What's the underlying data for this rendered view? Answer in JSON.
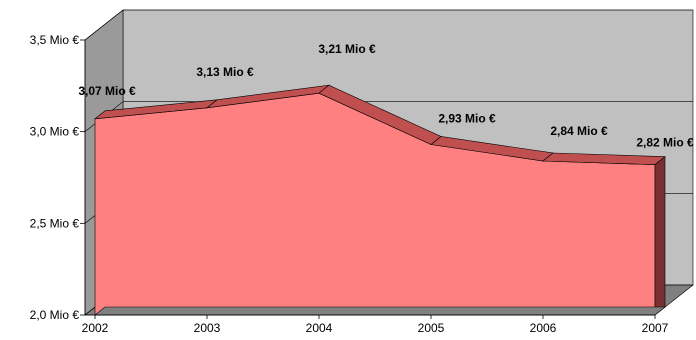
{
  "chart_data": {
    "type": "area",
    "x": [
      "2002",
      "2003",
      "2004",
      "2005",
      "2006",
      "2007"
    ],
    "values": [
      3.07,
      3.13,
      3.21,
      2.93,
      2.84,
      2.82
    ],
    "data_labels": [
      "3,07 Mio €",
      "3,13 Mio €",
      "3,21 Mio €",
      "2,93 Mio €",
      "2,84 Mio €",
      "2,82 Mio €"
    ],
    "y_ticks": [
      {
        "value": 2.0,
        "label": "2,0 Mio €"
      },
      {
        "value": 2.5,
        "label": "2,5 Mio €"
      },
      {
        "value": 3.0,
        "label": "3,0 Mio €"
      },
      {
        "value": 3.5,
        "label": "3,5 Mio €"
      }
    ],
    "ylim": [
      2.0,
      3.5
    ],
    "grid": true,
    "legend": "none",
    "three_d": true,
    "colors": {
      "area_front": "#ff8080",
      "area_top": "#c05050",
      "area_side": "#7a3030",
      "wall_back": "#c0c0c0",
      "wall_side": "#9a9a9a",
      "floor": "#808080",
      "grid": "#000000"
    }
  }
}
